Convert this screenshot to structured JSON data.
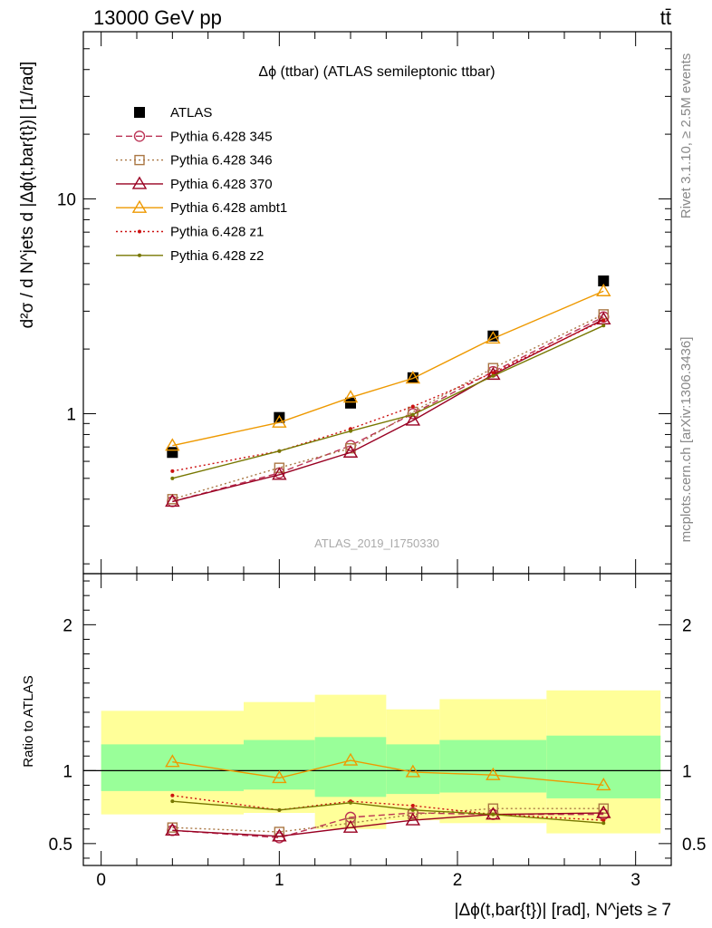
{
  "header": {
    "left": "13000 GeV pp",
    "right": "tt̄"
  },
  "side_labels": {
    "rivet": "Rivet 3.1.10, ≥ 2.5M events",
    "mcplots": "mcplots.cern.ch [arXiv:1306.3436]"
  },
  "chart_data": [
    {
      "type": "scatter",
      "panel": "main",
      "title": "Δϕ (ttbar) (ATLAS semileptonic ttbar)",
      "ylabel": "d²σ / d N^jets d |Δϕ(t,bar{t})| [1/rad]",
      "yscale": "log",
      "ylim": [
        0.18,
        60
      ],
      "xlim": [
        -0.1,
        3.2
      ],
      "y_ticks": [
        "1",
        "10"
      ],
      "watermark": "ATLAS_2019_I1750330",
      "legend_position": "top-left",
      "x": [
        0.4,
        1.0,
        1.4,
        1.75,
        2.2,
        2.82
      ],
      "series": [
        {
          "name": "ATLAS",
          "color": "#000000",
          "style": "data",
          "marker": "square",
          "values": [
            0.66,
            0.96,
            1.12,
            1.47,
            2.3,
            4.15
          ]
        },
        {
          "name": "Pythia 6.428 345",
          "color": "#bb3355",
          "style": "dashed",
          "marker": "circle",
          "values": [
            0.39,
            0.53,
            0.71,
            1.0,
            1.57,
            2.82
          ]
        },
        {
          "name": "Pythia 6.428 346",
          "color": "#aa7744",
          "style": "dotted",
          "marker": "square-open",
          "values": [
            0.4,
            0.56,
            0.69,
            1.02,
            1.63,
            2.9
          ]
        },
        {
          "name": "Pythia 6.428 370",
          "color": "#990022",
          "style": "solid",
          "marker": "triangle",
          "values": [
            0.39,
            0.52,
            0.66,
            0.93,
            1.52,
            2.75
          ]
        },
        {
          "name": "Pythia 6.428 ambt1",
          "color": "#ee9900",
          "style": "solid",
          "marker": "triangle",
          "values": [
            0.71,
            0.91,
            1.19,
            1.46,
            2.24,
            3.72
          ]
        },
        {
          "name": "Pythia 6.428 z1",
          "color": "#cc1111",
          "style": "dotted",
          "marker": "dot",
          "values": [
            0.54,
            0.67,
            0.85,
            1.08,
            1.55,
            2.72
          ]
        },
        {
          "name": "Pythia 6.428 z2",
          "color": "#777700",
          "style": "solid",
          "marker": "dot",
          "values": [
            0.5,
            0.67,
            0.83,
            0.99,
            1.5,
            2.57
          ]
        }
      ]
    },
    {
      "type": "line",
      "panel": "ratio",
      "ylabel": "Ratio to ATLAS",
      "xlabel": "|Δϕ(t,bar{t})| [rad], N^jets ≥ 7",
      "ylim": [
        0.35,
        2.35
      ],
      "xlim": [
        -0.1,
        3.2
      ],
      "y_ticks": [
        "0.5",
        "1",
        "2"
      ],
      "x_ticks": [
        "0",
        "1",
        "2",
        "3"
      ],
      "bins": [
        0.0,
        0.8,
        1.2,
        1.6,
        1.9,
        2.5,
        3.14
      ],
      "band_inner": [
        [
          0.86,
          1.18
        ],
        [
          0.87,
          1.21
        ],
        [
          0.82,
          1.23
        ],
        [
          0.84,
          1.18
        ],
        [
          0.85,
          1.21
        ],
        [
          0.81,
          1.24
        ]
      ],
      "band_outer": [
        [
          0.7,
          1.41
        ],
        [
          0.71,
          1.47
        ],
        [
          0.6,
          1.52
        ],
        [
          0.66,
          1.42
        ],
        [
          0.64,
          1.49
        ],
        [
          0.57,
          1.55
        ]
      ],
      "x": [
        0.4,
        1.0,
        1.4,
        1.75,
        2.2,
        2.82
      ],
      "series": [
        {
          "name": "Pythia 6.428 345",
          "color": "#bb3355",
          "style": "dashed",
          "marker": "circle",
          "values": [
            0.59,
            0.54,
            0.68,
            0.71,
            0.7,
            0.7
          ]
        },
        {
          "name": "Pythia 6.428 346",
          "color": "#aa7744",
          "style": "dotted",
          "marker": "square-open",
          "values": [
            0.61,
            0.58,
            0.64,
            0.7,
            0.74,
            0.74
          ]
        },
        {
          "name": "Pythia 6.428 370",
          "color": "#990022",
          "style": "solid",
          "marker": "triangle",
          "values": [
            0.59,
            0.55,
            0.61,
            0.66,
            0.7,
            0.71
          ]
        },
        {
          "name": "Pythia 6.428 ambt1",
          "color": "#ee9900",
          "style": "solid",
          "marker": "triangle",
          "values": [
            1.06,
            0.95,
            1.07,
            0.99,
            0.97,
            0.9
          ]
        },
        {
          "name": "Pythia 6.428 z1",
          "color": "#cc1111",
          "style": "dotted",
          "marker": "dot",
          "values": [
            0.83,
            0.73,
            0.79,
            0.76,
            0.7,
            0.66
          ]
        },
        {
          "name": "Pythia 6.428 z2",
          "color": "#777700",
          "style": "solid",
          "marker": "dot",
          "values": [
            0.79,
            0.73,
            0.78,
            0.73,
            0.7,
            0.64
          ]
        }
      ]
    }
  ]
}
